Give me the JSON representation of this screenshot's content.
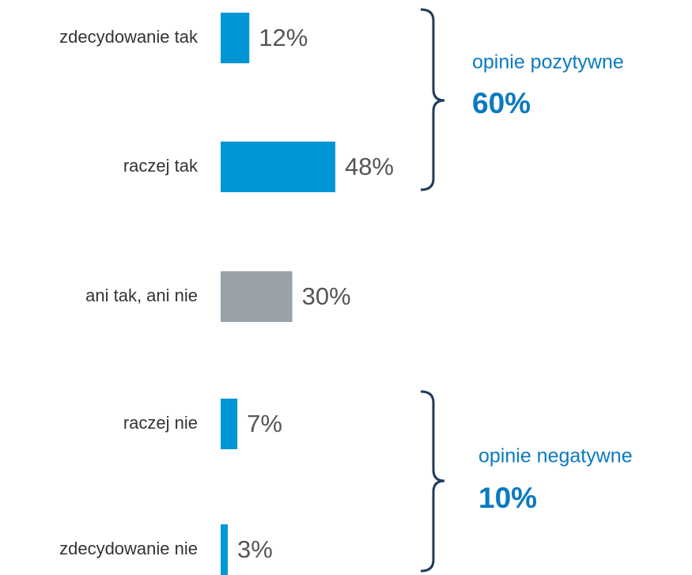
{
  "chart_data": {
    "type": "hbar",
    "categories": [
      "zdecydowanie tak",
      "raczej tak",
      "ani tak, ani nie",
      "raczej nie",
      "zdecydowanie nie"
    ],
    "values": [
      12,
      48,
      30,
      7,
      3
    ],
    "value_labels": [
      "12%",
      "48%",
      "30%",
      "7%",
      "3%"
    ],
    "colors": [
      "#0096d6",
      "#0096d6",
      "#99a2a9",
      "#0096d6",
      "#0096d6"
    ],
    "annotations": [
      {
        "text": "opinie pozytywne",
        "total": "60%"
      },
      {
        "text": "opinie negatywne",
        "total": "10%"
      }
    ]
  }
}
